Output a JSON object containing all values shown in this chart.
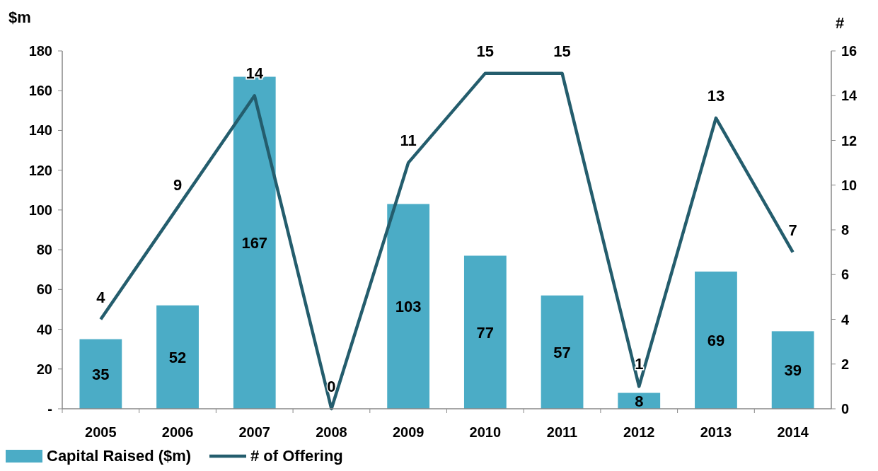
{
  "chart_data": {
    "type": "bar",
    "categories": [
      "2005",
      "2006",
      "2007",
      "2008",
      "2009",
      "2010",
      "2011",
      "2012",
      "2013",
      "2014"
    ],
    "ylabel": "$m",
    "y2label": "#",
    "series": [
      {
        "name": "Capital Raised ($m)",
        "color": "#4bacc6",
        "values": [
          35,
          52,
          167,
          0,
          103,
          77,
          57,
          8,
          69,
          39
        ],
        "value_labels": [
          "35",
          "52",
          "167",
          null,
          "103",
          "77",
          "57",
          "8",
          "69",
          "39"
        ]
      },
      {
        "name": "# of Offering",
        "type": "line",
        "axis": "y2",
        "color": "#245d6d",
        "values": [
          4,
          9,
          14,
          0,
          11,
          15,
          15,
          1,
          13,
          7
        ],
        "data_labels": true
      }
    ],
    "ylim": [
      0,
      180
    ],
    "yticks": [
      {
        "value": 0,
        "label": "-"
      },
      20,
      40,
      60,
      80,
      100,
      120,
      140,
      160,
      180
    ],
    "y2lim": [
      0,
      16
    ],
    "y2ticks": [
      0,
      2,
      4,
      6,
      8,
      10,
      12,
      14,
      16
    ],
    "legend": "bottom left",
    "marker": "none",
    "line_style": "solid",
    "grid": false
  }
}
